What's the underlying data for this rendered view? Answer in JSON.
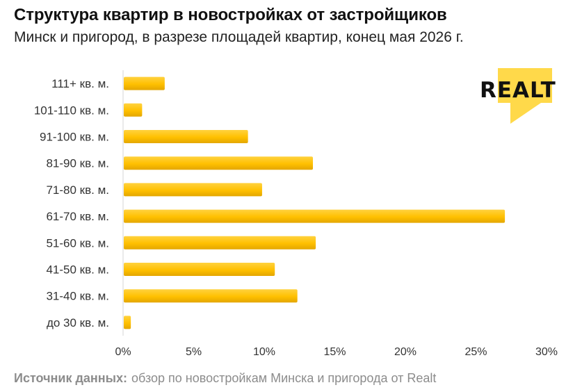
{
  "title": "Структура квартир в новостройках от застройщиков",
  "subtitle": "Минск и пригород, в разрезе площадей квартир, конец мая 2026 г.",
  "source_label": "Источник данных:",
  "source_text": "обзор по новостройкам Минска и пригорода от Realt",
  "logo_text": "REALT",
  "colors": {
    "bar": "#FFC000",
    "bar_dark": "#E0A800",
    "logo_bg": "#FFD94A"
  },
  "chart_data": {
    "type": "bar",
    "orientation": "horizontal",
    "categories": [
      "111+ кв. м.",
      "101-110 кв. м.",
      "91-100 кв. м.",
      "81-90 кв. м.",
      "71-80 кв. м.",
      "61-70 кв. м.",
      "51-60 кв. м.",
      "41-50 кв. м.",
      "31-40 кв. м.",
      "до 30 кв. м."
    ],
    "values": [
      2.9,
      1.3,
      8.8,
      13.4,
      9.8,
      27.0,
      13.6,
      10.7,
      12.3,
      0.5
    ],
    "x_ticks": [
      "0%",
      "5%",
      "10%",
      "15%",
      "20%",
      "25%",
      "30%"
    ],
    "xlim": [
      0,
      30
    ],
    "grid": false
  }
}
